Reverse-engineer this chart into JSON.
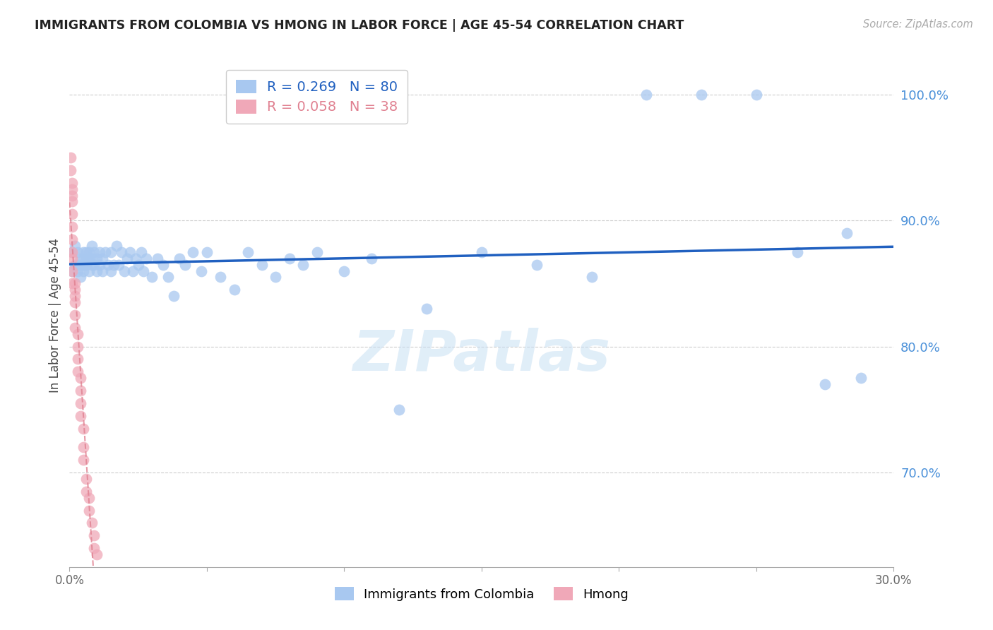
{
  "title": "IMMIGRANTS FROM COLOMBIA VS HMONG IN LABOR FORCE | AGE 45-54 CORRELATION CHART",
  "source": "Source: ZipAtlas.com",
  "ylabel": "In Labor Force | Age 45-54",
  "xlim": [
    0.0,
    0.3
  ],
  "ylim": [
    0.625,
    1.025
  ],
  "yticks": [
    0.7,
    0.8,
    0.9,
    1.0
  ],
  "ytick_labels": [
    "70.0%",
    "80.0%",
    "90.0%",
    "100.0%"
  ],
  "xticks": [
    0.0,
    0.05,
    0.1,
    0.15,
    0.2,
    0.25,
    0.3
  ],
  "xtick_labels": [
    "0.0%",
    "",
    "",
    "",
    "",
    "",
    "30.0%"
  ],
  "colombia_R": 0.269,
  "colombia_N": 80,
  "hmong_R": 0.058,
  "hmong_N": 38,
  "colombia_color": "#a8c8f0",
  "hmong_color": "#f0a8b8",
  "colombia_line_color": "#2060c0",
  "hmong_line_color": "#e08090",
  "watermark": "ZIPatlas",
  "colombia_x": [
    0.001,
    0.001,
    0.002,
    0.002,
    0.003,
    0.003,
    0.003,
    0.004,
    0.004,
    0.004,
    0.005,
    0.005,
    0.005,
    0.005,
    0.006,
    0.006,
    0.006,
    0.007,
    0.007,
    0.007,
    0.008,
    0.008,
    0.008,
    0.009,
    0.009,
    0.01,
    0.01,
    0.011,
    0.011,
    0.012,
    0.012,
    0.013,
    0.014,
    0.015,
    0.015,
    0.016,
    0.017,
    0.018,
    0.019,
    0.02,
    0.021,
    0.022,
    0.023,
    0.024,
    0.025,
    0.026,
    0.027,
    0.028,
    0.03,
    0.032,
    0.034,
    0.036,
    0.038,
    0.04,
    0.042,
    0.045,
    0.048,
    0.05,
    0.055,
    0.06,
    0.065,
    0.07,
    0.075,
    0.08,
    0.085,
    0.09,
    0.1,
    0.11,
    0.12,
    0.13,
    0.15,
    0.17,
    0.19,
    0.21,
    0.23,
    0.25,
    0.265,
    0.275,
    0.283,
    0.288
  ],
  "colombia_y": [
    0.875,
    0.86,
    0.88,
    0.865,
    0.875,
    0.865,
    0.86,
    0.87,
    0.865,
    0.855,
    0.87,
    0.865,
    0.86,
    0.875,
    0.87,
    0.865,
    0.875,
    0.86,
    0.87,
    0.875,
    0.865,
    0.87,
    0.88,
    0.865,
    0.875,
    0.86,
    0.87,
    0.865,
    0.875,
    0.86,
    0.87,
    0.875,
    0.865,
    0.86,
    0.875,
    0.865,
    0.88,
    0.865,
    0.875,
    0.86,
    0.87,
    0.875,
    0.86,
    0.87,
    0.865,
    0.875,
    0.86,
    0.87,
    0.855,
    0.87,
    0.865,
    0.855,
    0.84,
    0.87,
    0.865,
    0.875,
    0.86,
    0.875,
    0.855,
    0.845,
    0.875,
    0.865,
    0.855,
    0.87,
    0.865,
    0.875,
    0.86,
    0.87,
    0.75,
    0.83,
    0.875,
    0.865,
    0.855,
    1.0,
    1.0,
    1.0,
    0.875,
    0.77,
    0.89,
    0.775
  ],
  "hmong_x": [
    0.0005,
    0.0005,
    0.0008,
    0.001,
    0.001,
    0.001,
    0.001,
    0.001,
    0.001,
    0.001,
    0.001,
    0.001,
    0.001,
    0.002,
    0.002,
    0.002,
    0.002,
    0.002,
    0.002,
    0.003,
    0.003,
    0.003,
    0.003,
    0.004,
    0.004,
    0.004,
    0.004,
    0.005,
    0.005,
    0.005,
    0.006,
    0.006,
    0.007,
    0.007,
    0.008,
    0.009,
    0.009,
    0.01
  ],
  "hmong_y": [
    0.95,
    0.94,
    0.93,
    0.925,
    0.92,
    0.915,
    0.905,
    0.895,
    0.885,
    0.875,
    0.87,
    0.86,
    0.85,
    0.85,
    0.845,
    0.84,
    0.835,
    0.825,
    0.815,
    0.81,
    0.8,
    0.79,
    0.78,
    0.775,
    0.765,
    0.755,
    0.745,
    0.735,
    0.72,
    0.71,
    0.695,
    0.685,
    0.68,
    0.67,
    0.66,
    0.65,
    0.64,
    0.635
  ]
}
